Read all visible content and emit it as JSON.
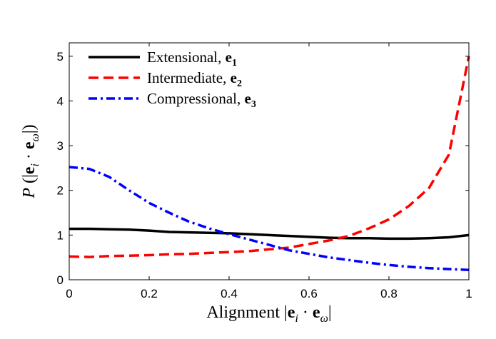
{
  "chart_data": {
    "type": "line",
    "xlabel": "Alignment |e_i · e_ω|",
    "ylabel": "P(|e_i · e_ω|)",
    "xlim": [
      0,
      1
    ],
    "ylim": [
      0,
      5.3
    ],
    "x_ticks": [
      "0",
      "0.2",
      "0.4",
      "0.6",
      "0.8",
      "1"
    ],
    "y_ticks": [
      "0",
      "1",
      "2",
      "3",
      "4",
      "5"
    ],
    "legend_position": "top-left",
    "series": [
      {
        "name": "Extensional, e1",
        "color": "#000000",
        "style": "solid",
        "x": [
          0.0,
          0.05,
          0.1,
          0.15,
          0.2,
          0.25,
          0.3,
          0.35,
          0.4,
          0.45,
          0.5,
          0.55,
          0.6,
          0.65,
          0.7,
          0.75,
          0.8,
          0.85,
          0.9,
          0.95,
          1.0
        ],
        "y": [
          1.14,
          1.14,
          1.13,
          1.12,
          1.1,
          1.07,
          1.06,
          1.05,
          1.04,
          1.02,
          1.0,
          0.98,
          0.96,
          0.94,
          0.93,
          0.93,
          0.92,
          0.92,
          0.93,
          0.95,
          1.0
        ]
      },
      {
        "name": "Intermediate, e2",
        "color": "#ff0000",
        "style": "dashed",
        "x": [
          0.0,
          0.05,
          0.1,
          0.15,
          0.2,
          0.25,
          0.3,
          0.35,
          0.4,
          0.45,
          0.5,
          0.55,
          0.6,
          0.65,
          0.7,
          0.75,
          0.8,
          0.85,
          0.9,
          0.95,
          1.0
        ],
        "y": [
          0.52,
          0.51,
          0.53,
          0.54,
          0.55,
          0.57,
          0.58,
          0.6,
          0.62,
          0.64,
          0.68,
          0.72,
          0.8,
          0.88,
          0.98,
          1.15,
          1.35,
          1.65,
          2.05,
          2.8,
          5.0
        ]
      },
      {
        "name": "Compressional, e3",
        "color": "#0000ff",
        "style": "dash-dot",
        "x": [
          0.0,
          0.05,
          0.1,
          0.15,
          0.2,
          0.25,
          0.3,
          0.35,
          0.4,
          0.45,
          0.5,
          0.55,
          0.6,
          0.65,
          0.7,
          0.75,
          0.8,
          0.85,
          0.9,
          0.95,
          1.0
        ],
        "y": [
          2.52,
          2.48,
          2.3,
          2.0,
          1.72,
          1.5,
          1.3,
          1.15,
          1.02,
          0.9,
          0.78,
          0.66,
          0.58,
          0.5,
          0.44,
          0.38,
          0.33,
          0.29,
          0.26,
          0.24,
          0.22
        ]
      }
    ]
  }
}
